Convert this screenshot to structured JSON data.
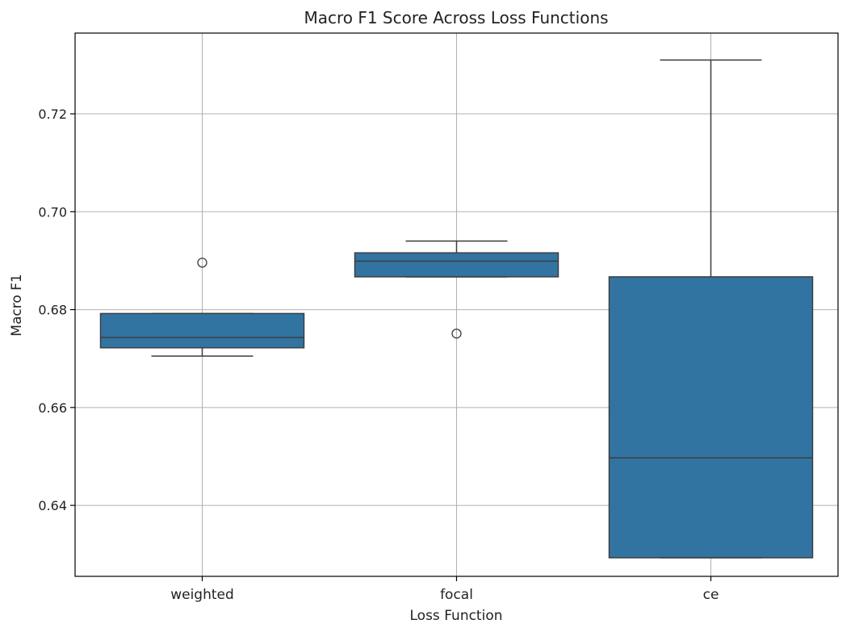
{
  "chart_data": {
    "type": "box",
    "title": "Macro F1 Score Across Loss Functions",
    "xlabel": "Loss Function",
    "ylabel": "Macro F1",
    "categories": [
      "weighted",
      "focal",
      "ce"
    ],
    "ylim": [
      0.6255,
      0.7365
    ],
    "yticks": [
      0.64,
      0.66,
      0.68,
      0.7,
      0.72
    ],
    "ytick_labels": [
      "0.64",
      "0.66",
      "0.68",
      "0.70",
      "0.72"
    ],
    "grid": true,
    "box_color": "#3274a1",
    "edge_color": "#3d3d3d",
    "boxes": [
      {
        "category": "weighted",
        "whisker_low": 0.6705,
        "q1": 0.6722,
        "median": 0.6743,
        "q3": 0.6792,
        "whisker_high": 0.6792,
        "outliers": [
          0.6896
        ]
      },
      {
        "category": "focal",
        "whisker_low": 0.6867,
        "q1": 0.6867,
        "median": 0.6899,
        "q3": 0.6916,
        "whisker_high": 0.694,
        "outliers": [
          0.6751
        ]
      },
      {
        "category": "ce",
        "whisker_low": 0.6293,
        "q1": 0.6293,
        "median": 0.6497,
        "q3": 0.6867,
        "whisker_high": 0.731,
        "outliers": []
      }
    ]
  }
}
